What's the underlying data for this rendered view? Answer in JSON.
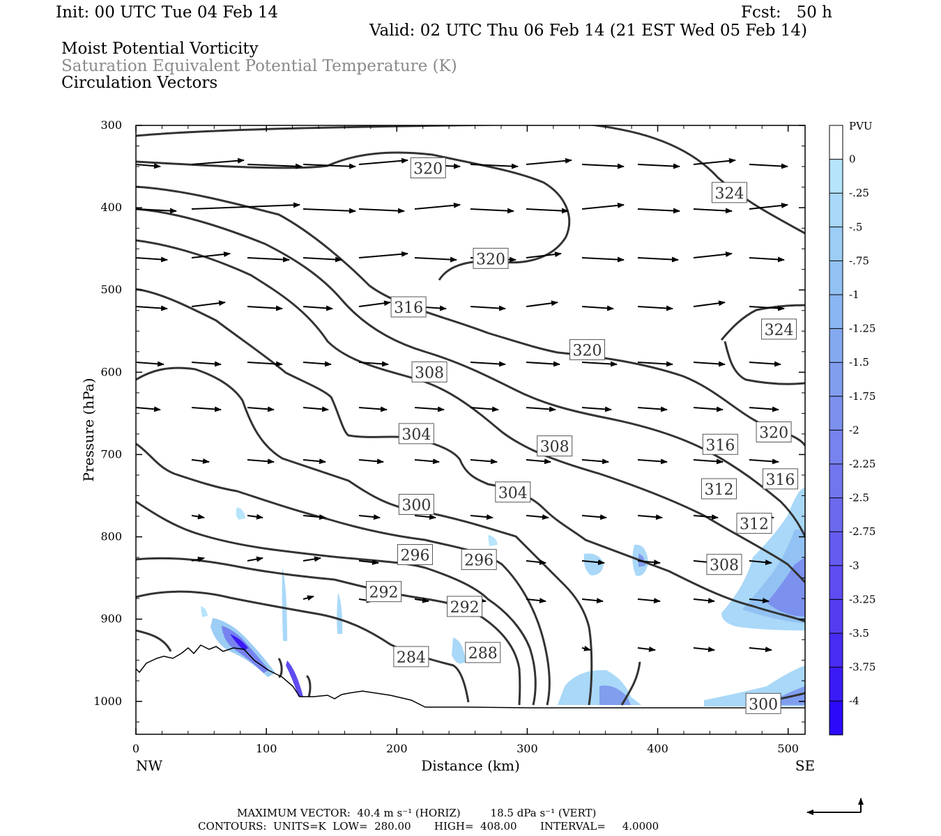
{
  "header": {
    "init": "Init: 00 UTC Tue 04 Feb 14",
    "fcst": "Fcst:   50 h",
    "valid": "Valid: 02 UTC Thu 06 Feb 14 (21 EST Wed 05 Feb 14)",
    "line1": "Moist Potential Vorticity",
    "line2": "Saturation Equivalent Potential Temperature (K)",
    "line3": "Circulation Vectors"
  },
  "footer": {
    "max_vector": "MAXIMUM VECTOR:  40.4 m s⁻¹ (HORIZ)         18.5 dPa s⁻¹ (VERT)",
    "contours": "CONTOURS:  UNITS=K  LOW=  280.00       HIGH=  408.00       INTERVAL=     4.0000"
  },
  "chart_data": {
    "type": "contour",
    "xlabel": "Distance (km)",
    "ylabel": "Pressure (hPa)",
    "x_ticks": [
      0,
      100,
      200,
      300,
      400,
      500
    ],
    "x_end_labels": {
      "left": "NW",
      "right": "SE"
    },
    "xlim": [
      0,
      513
    ],
    "y_ticks": [
      300,
      400,
      500,
      600,
      700,
      800,
      900,
      1000
    ],
    "ylim": [
      1040,
      300
    ],
    "y_reversed": true,
    "colorbar": {
      "unit": "PVU",
      "labels": [
        "0",
        "-.25",
        "-.5",
        "-.75",
        "-1",
        "-1.25",
        "-1.5",
        "-1.75",
        "-2",
        "-2.25",
        "-2.5",
        "-2.75",
        "-3",
        "-3.25",
        "-3.5",
        "-3.75",
        "-4"
      ],
      "colors": [
        "#ffffff",
        "#b6e4fb",
        "#a9d8f8",
        "#9ccdf4",
        "#92c2f3",
        "#8ab6f1",
        "#85a9ef",
        "#809dee",
        "#7c90ee",
        "#7783ef",
        "#7276ee",
        "#6c69ef",
        "#655bef",
        "#5e4cf0",
        "#543df1",
        "#482cf3",
        "#3b1bf5",
        "#2a0af8"
      ]
    },
    "contour_labels": [
      {
        "value": "320",
        "x": 224,
        "p": 352
      },
      {
        "value": "324",
        "x": 455,
        "p": 382
      },
      {
        "value": "320",
        "x": 272,
        "p": 462
      },
      {
        "value": "316",
        "x": 209,
        "p": 521
      },
      {
        "value": "324",
        "x": 493,
        "p": 548
      },
      {
        "value": "320",
        "x": 346,
        "p": 573
      },
      {
        "value": "308",
        "x": 225,
        "p": 600
      },
      {
        "value": "304",
        "x": 215,
        "p": 675
      },
      {
        "value": "308",
        "x": 321,
        "p": 690
      },
      {
        "value": "316",
        "x": 448,
        "p": 688
      },
      {
        "value": "320",
        "x": 489,
        "p": 673
      },
      {
        "value": "316",
        "x": 494,
        "p": 730
      },
      {
        "value": "304",
        "x": 289,
        "p": 746
      },
      {
        "value": "312",
        "x": 447,
        "p": 742
      },
      {
        "value": "300",
        "x": 215,
        "p": 761
      },
      {
        "value": "312",
        "x": 474,
        "p": 784
      },
      {
        "value": "296",
        "x": 214,
        "p": 822
      },
      {
        "value": "296",
        "x": 263,
        "p": 828
      },
      {
        "value": "308",
        "x": 451,
        "p": 834
      },
      {
        "value": "292",
        "x": 190,
        "p": 867
      },
      {
        "value": "292",
        "x": 252,
        "p": 885
      },
      {
        "value": "284",
        "x": 211,
        "p": 946
      },
      {
        "value": "288",
        "x": 266,
        "p": 941
      },
      {
        "value": "300",
        "x": 481,
        "p": 1003
      }
    ]
  }
}
